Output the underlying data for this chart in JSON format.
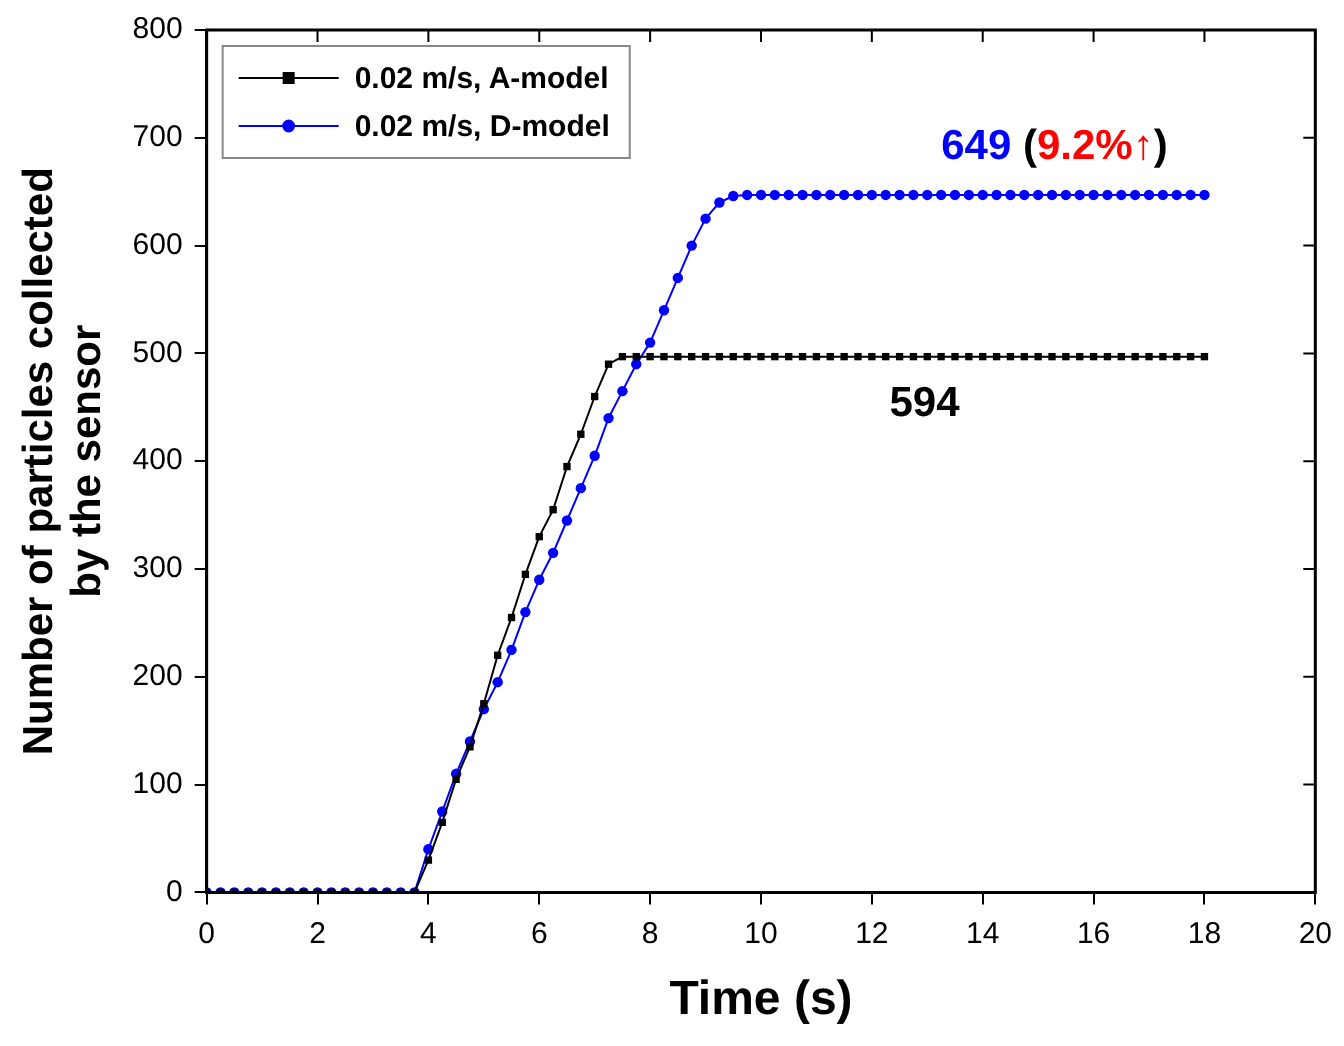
{
  "chart_data": {
    "type": "line",
    "xlabel": "Time (s)",
    "ylabel": "Number of particles collected by the sensor",
    "x": [
      0,
      0.25,
      0.5,
      0.75,
      1,
      1.25,
      1.5,
      1.75,
      2,
      2.25,
      2.5,
      2.75,
      3,
      3.25,
      3.5,
      3.75,
      4,
      4.25,
      4.5,
      4.75,
      5,
      5.25,
      5.5,
      5.75,
      6,
      6.25,
      6.5,
      6.75,
      7,
      7.25,
      7.5,
      7.75,
      8,
      8.25,
      8.5,
      8.75,
      9,
      9.25,
      9.5,
      9.75,
      10,
      10.25,
      10.5,
      10.75,
      11,
      11.25,
      11.5,
      11.75,
      12,
      12.25,
      12.5,
      12.75,
      13,
      13.25,
      13.5,
      13.75,
      14,
      14.25,
      14.5,
      14.75,
      15,
      15.25,
      15.5,
      15.75,
      16,
      16.25,
      16.5,
      16.75,
      17,
      17.25,
      17.5,
      17.75,
      18
    ],
    "series": [
      {
        "name": "0.02 m/s, A-model",
        "color": "#000000",
        "marker": "square",
        "values": [
          0,
          0,
          0,
          0,
          0,
          0,
          0,
          0,
          0,
          0,
          0,
          0,
          0,
          0,
          0,
          0,
          30,
          65,
          105,
          135,
          175,
          220,
          255,
          295,
          330,
          355,
          395,
          425,
          460,
          490,
          497,
          497,
          497,
          497,
          497,
          497,
          497,
          497,
          497,
          497,
          497,
          497,
          497,
          497,
          497,
          497,
          497,
          497,
          497,
          497,
          497,
          497,
          497,
          497,
          497,
          497,
          497,
          497,
          497,
          497,
          497,
          497,
          497,
          497,
          497,
          497,
          497,
          497,
          497,
          497,
          497,
          497,
          497
        ]
      },
      {
        "name": "0.02 m/s, D-model",
        "color": "#0000ff",
        "marker": "circle",
        "values": [
          0,
          0,
          0,
          0,
          0,
          0,
          0,
          0,
          0,
          0,
          0,
          0,
          0,
          0,
          0,
          0,
          40,
          75,
          110,
          140,
          170,
          195,
          225,
          260,
          290,
          315,
          345,
          375,
          405,
          440,
          465,
          490,
          510,
          540,
          570,
          600,
          625,
          640,
          646,
          647,
          647,
          647,
          647,
          647,
          647,
          647,
          647,
          647,
          647,
          647,
          647,
          647,
          647,
          647,
          647,
          647,
          647,
          647,
          647,
          647,
          647,
          647,
          647,
          647,
          647,
          647,
          647,
          647,
          647,
          647,
          647,
          647,
          647
        ]
      }
    ],
    "annotations": [
      "594",
      "649 (9.2%↑)"
    ],
    "xlim": [
      0,
      20
    ],
    "xticks": [
      0,
      2,
      4,
      6,
      8,
      10,
      12,
      14,
      16,
      18,
      20
    ],
    "ylim": [
      0,
      800
    ],
    "yticks": [
      0,
      100,
      200,
      300,
      400,
      500,
      600,
      700,
      800
    ],
    "grid": false,
    "legend": "top left"
  }
}
